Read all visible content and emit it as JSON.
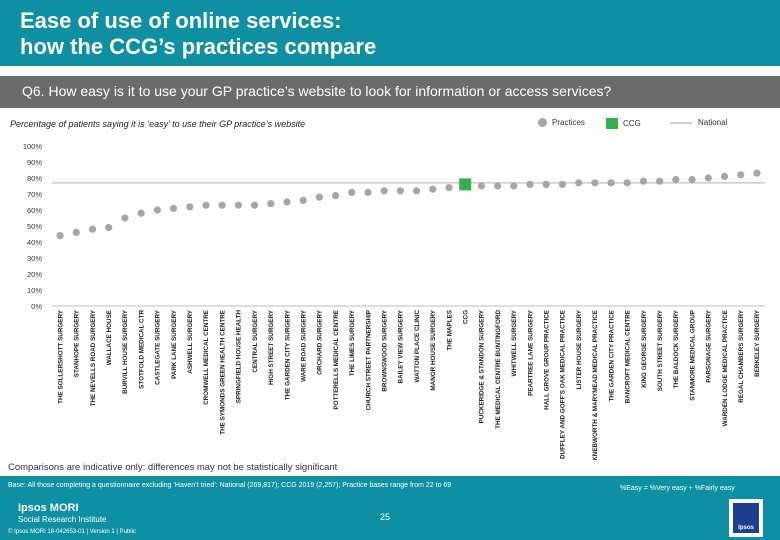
{
  "header": {
    "title_line1": "Ease of use of online services:",
    "title_line2": "how the CCG’s practices compare"
  },
  "question": "Q6. How easy is it to use your GP practice’s website to look for information or access services?",
  "subtitle": "Percentage of patients saying it is ‘easy’ to use their GP practice’s website",
  "legend": {
    "practices": "Practices",
    "ccg": "CCG",
    "national": "National"
  },
  "colors": {
    "header_bg": "#0e8fa2",
    "question_bg": "#6b6b6b",
    "practice_dot": "#a6a6a6",
    "ccg_marker": "#33b050",
    "national_line": "#cfcfcf"
  },
  "chart_data": {
    "type": "scatter",
    "title": "Percentage of patients saying it is ‘easy’ to use their GP practice’s website",
    "xlabel": "",
    "ylabel": "",
    "ylim": [
      0,
      100
    ],
    "y_ticks": [
      "0%",
      "10%",
      "20%",
      "30%",
      "40%",
      "50%",
      "60%",
      "70%",
      "80%",
      "90%",
      "100%"
    ],
    "national_value": 77,
    "ccg_value": 76,
    "categories": [
      "THE SOLLERSHOTT SURGERY",
      "STANHOPE SURGERY",
      "THE NEVELLS ROAD SURGERY",
      "WALLACE HOUSE",
      "BURVILL HOUSE SURGERY",
      "STOTFOLD MEDICAL CTR",
      "CASTLEGATE SURGERY",
      "PARK LANE SURGERY",
      "ASHWELL SURGERY",
      "CROMWELL MEDICAL CENTRE",
      "THE SYMONDS GREEN HEALTH CENTRE",
      "SPRINGFIELD HOUSE HEALTH",
      "CENTRAL SURGERY",
      "HIGH STREET SURGERY",
      "THE GARDEN CITY SURGERY",
      "WARE ROAD SURGERY",
      "ORCHARD SURGERY",
      "POTTERELLS MEDICAL CENTRE",
      "THE LIMES SURGERY",
      "CHURCH STREET PARTNERSHIP",
      "BROWNSWOOD SURGERY",
      "BAILEY VIEW SURGERY",
      "WATTON PLACE CLINIC",
      "MANOR HOUSE SURGERY",
      "THE MAPLES",
      "CCG",
      "PUCKERIDGE & STANDON SURGERY",
      "THE MEDICAL CENTRE BUNTINGFORD",
      "WHITWELL SURGERY",
      "PEARTREE LANE SURGERY",
      "HALL GROVE GROUP PRACTICE",
      "DUFFLEY AND GOFF'S OAK MEDICAL PRACTICE",
      "LISTER HOUSE SURGERY",
      "KNEBWORTH & MARYMEAD MEDICAL PRACTICE",
      "THE GARDEN CITY PRACTICE",
      "BANCROFT MEDICAL CENTRE",
      "KING GEORGE SURGERY",
      "SOUTH STREET SURGERY",
      "THE BALDOCK SURGERY",
      "STANMORE MEDICAL GROUP",
      "PARSONAGE SURGERY",
      "WARDEN LODGE MEDICAL PRACTICE",
      "REGAL CHAMBERS SURGERY",
      "BERKELEY SURGERY"
    ],
    "values": [
      44,
      46,
      48,
      49,
      55,
      58,
      60,
      61,
      62,
      63,
      63,
      63,
      63,
      64,
      65,
      66,
      68,
      69,
      71,
      71,
      72,
      72,
      72,
      73,
      74,
      76,
      75,
      75,
      75,
      76,
      76,
      76,
      77,
      77,
      77,
      77,
      78,
      78,
      79,
      79,
      80,
      81,
      82,
      83
    ]
  },
  "disclaimer": "Comparisons are indicative only: differences may not be statistically significant",
  "footer": {
    "base": "Base: All those completing a questionnaire excluding ‘Haven’t tried’: National (269,817); CCG 2019 (2,257); Practice bases range from 22 to 69",
    "formula": "%Easy = %Very easy + %Fairly easy",
    "brand_line1": "Ipsos MORI",
    "brand_line2": "Social Research Institute",
    "copyright": "© Ipsos MORI     18-042653-01 | Version 1 | Public",
    "page_number": "25",
    "logo_text": "Ipsos"
  }
}
